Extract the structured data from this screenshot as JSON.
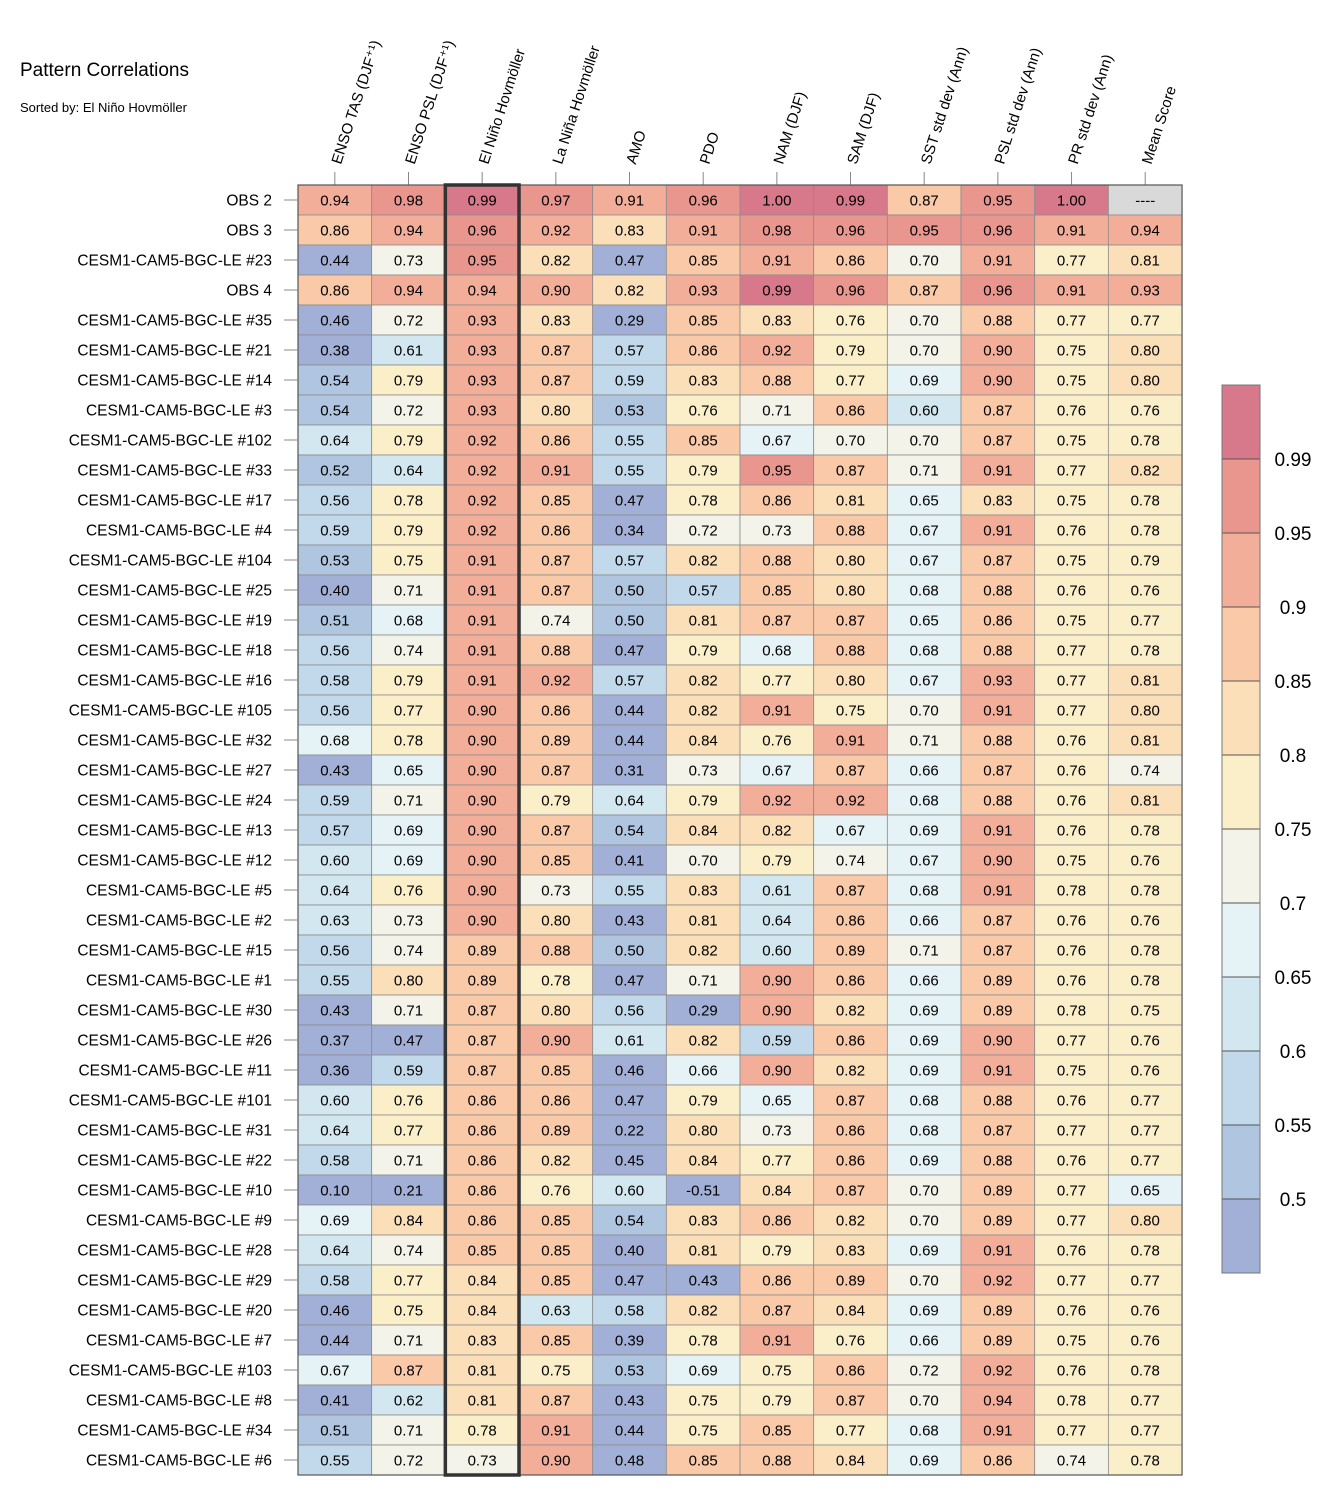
{
  "title": "Pattern Correlations",
  "subtitle": "Sorted by: El Niño Hovmöller",
  "chart_data": {
    "type": "heatmap",
    "columns": [
      "ENSO TAS (DJF⁺¹)",
      "ENSO PSL (DJF⁺¹)",
      "El Niño Hovmöller",
      "La Niña Hovmöller",
      "AMO",
      "PDO",
      "NAM (DJF)",
      "SAM (DJF)",
      "SST std dev (Ann)",
      "PSL std dev (Ann)",
      "PR std dev (Ann)",
      "Mean Score"
    ],
    "highlighted_column": "El Niño Hovmöller",
    "missing_label": "----",
    "rows": [
      {
        "name": "OBS 2",
        "values": [
          0.94,
          0.98,
          0.99,
          0.97,
          0.91,
          0.96,
          1.0,
          0.99,
          0.87,
          0.95,
          1.0,
          null
        ]
      },
      {
        "name": "OBS 3",
        "values": [
          0.86,
          0.94,
          0.96,
          0.92,
          0.83,
          0.91,
          0.98,
          0.96,
          0.95,
          0.96,
          0.91,
          0.94
        ]
      },
      {
        "name": "CESM1-CAM5-BGC-LE #23",
        "values": [
          0.44,
          0.73,
          0.95,
          0.82,
          0.47,
          0.85,
          0.91,
          0.86,
          0.7,
          0.91,
          0.77,
          0.81
        ]
      },
      {
        "name": "OBS 4",
        "values": [
          0.86,
          0.94,
          0.94,
          0.9,
          0.82,
          0.93,
          0.99,
          0.96,
          0.87,
          0.96,
          0.91,
          0.93
        ]
      },
      {
        "name": "CESM1-CAM5-BGC-LE #35",
        "values": [
          0.46,
          0.72,
          0.93,
          0.83,
          0.29,
          0.85,
          0.83,
          0.76,
          0.7,
          0.88,
          0.77,
          0.77
        ]
      },
      {
        "name": "CESM1-CAM5-BGC-LE #21",
        "values": [
          0.38,
          0.61,
          0.93,
          0.87,
          0.57,
          0.86,
          0.92,
          0.79,
          0.7,
          0.9,
          0.75,
          0.8
        ]
      },
      {
        "name": "CESM1-CAM5-BGC-LE #14",
        "values": [
          0.54,
          0.79,
          0.93,
          0.87,
          0.59,
          0.83,
          0.88,
          0.77,
          0.69,
          0.9,
          0.75,
          0.8
        ]
      },
      {
        "name": "CESM1-CAM5-BGC-LE #3",
        "values": [
          0.54,
          0.72,
          0.93,
          0.8,
          0.53,
          0.76,
          0.71,
          0.86,
          0.6,
          0.87,
          0.76,
          0.76
        ]
      },
      {
        "name": "CESM1-CAM5-BGC-LE #102",
        "values": [
          0.64,
          0.79,
          0.92,
          0.86,
          0.55,
          0.85,
          0.67,
          0.7,
          0.7,
          0.87,
          0.75,
          0.78
        ]
      },
      {
        "name": "CESM1-CAM5-BGC-LE #33",
        "values": [
          0.52,
          0.64,
          0.92,
          0.91,
          0.55,
          0.79,
          0.95,
          0.87,
          0.71,
          0.91,
          0.77,
          0.82
        ]
      },
      {
        "name": "CESM1-CAM5-BGC-LE #17",
        "values": [
          0.56,
          0.78,
          0.92,
          0.85,
          0.47,
          0.78,
          0.86,
          0.81,
          0.65,
          0.83,
          0.75,
          0.78
        ]
      },
      {
        "name": "CESM1-CAM5-BGC-LE #4",
        "values": [
          0.59,
          0.79,
          0.92,
          0.86,
          0.34,
          0.72,
          0.73,
          0.88,
          0.67,
          0.91,
          0.76,
          0.78
        ]
      },
      {
        "name": "CESM1-CAM5-BGC-LE #104",
        "values": [
          0.53,
          0.75,
          0.91,
          0.87,
          0.57,
          0.82,
          0.88,
          0.8,
          0.67,
          0.87,
          0.75,
          0.79
        ]
      },
      {
        "name": "CESM1-CAM5-BGC-LE #25",
        "values": [
          0.4,
          0.71,
          0.91,
          0.87,
          0.5,
          0.57,
          0.85,
          0.8,
          0.68,
          0.88,
          0.76,
          0.76
        ]
      },
      {
        "name": "CESM1-CAM5-BGC-LE #19",
        "values": [
          0.51,
          0.68,
          0.91,
          0.74,
          0.5,
          0.81,
          0.87,
          0.87,
          0.65,
          0.86,
          0.75,
          0.77
        ]
      },
      {
        "name": "CESM1-CAM5-BGC-LE #18",
        "values": [
          0.56,
          0.74,
          0.91,
          0.88,
          0.47,
          0.79,
          0.68,
          0.88,
          0.68,
          0.88,
          0.77,
          0.78
        ]
      },
      {
        "name": "CESM1-CAM5-BGC-LE #16",
        "values": [
          0.58,
          0.79,
          0.91,
          0.92,
          0.57,
          0.82,
          0.77,
          0.8,
          0.67,
          0.93,
          0.77,
          0.81
        ]
      },
      {
        "name": "CESM1-CAM5-BGC-LE #105",
        "values": [
          0.56,
          0.77,
          0.9,
          0.86,
          0.44,
          0.82,
          0.91,
          0.75,
          0.7,
          0.91,
          0.77,
          0.8
        ]
      },
      {
        "name": "CESM1-CAM5-BGC-LE #32",
        "values": [
          0.68,
          0.78,
          0.9,
          0.89,
          0.44,
          0.84,
          0.76,
          0.91,
          0.71,
          0.88,
          0.76,
          0.81
        ]
      },
      {
        "name": "CESM1-CAM5-BGC-LE #27",
        "values": [
          0.43,
          0.65,
          0.9,
          0.87,
          0.31,
          0.73,
          0.67,
          0.87,
          0.66,
          0.87,
          0.76,
          0.74
        ]
      },
      {
        "name": "CESM1-CAM5-BGC-LE #24",
        "values": [
          0.59,
          0.71,
          0.9,
          0.79,
          0.64,
          0.79,
          0.92,
          0.92,
          0.68,
          0.88,
          0.76,
          0.81
        ]
      },
      {
        "name": "CESM1-CAM5-BGC-LE #13",
        "values": [
          0.57,
          0.69,
          0.9,
          0.87,
          0.54,
          0.84,
          0.82,
          0.67,
          0.69,
          0.91,
          0.76,
          0.78
        ]
      },
      {
        "name": "CESM1-CAM5-BGC-LE #12",
        "values": [
          0.6,
          0.69,
          0.9,
          0.85,
          0.41,
          0.7,
          0.79,
          0.74,
          0.67,
          0.9,
          0.75,
          0.76
        ]
      },
      {
        "name": "CESM1-CAM5-BGC-LE #5",
        "values": [
          0.64,
          0.76,
          0.9,
          0.73,
          0.55,
          0.83,
          0.61,
          0.87,
          0.68,
          0.91,
          0.78,
          0.78
        ]
      },
      {
        "name": "CESM1-CAM5-BGC-LE #2",
        "values": [
          0.63,
          0.73,
          0.9,
          0.8,
          0.43,
          0.81,
          0.64,
          0.86,
          0.66,
          0.87,
          0.76,
          0.76
        ]
      },
      {
        "name": "CESM1-CAM5-BGC-LE #15",
        "values": [
          0.56,
          0.74,
          0.89,
          0.88,
          0.5,
          0.82,
          0.6,
          0.89,
          0.71,
          0.87,
          0.76,
          0.78
        ]
      },
      {
        "name": "CESM1-CAM5-BGC-LE #1",
        "values": [
          0.55,
          0.8,
          0.89,
          0.78,
          0.47,
          0.71,
          0.9,
          0.86,
          0.66,
          0.89,
          0.76,
          0.78
        ]
      },
      {
        "name": "CESM1-CAM5-BGC-LE #30",
        "values": [
          0.43,
          0.71,
          0.87,
          0.8,
          0.56,
          0.29,
          0.9,
          0.82,
          0.69,
          0.89,
          0.78,
          0.75
        ]
      },
      {
        "name": "CESM1-CAM5-BGC-LE #26",
        "values": [
          0.37,
          0.47,
          0.87,
          0.9,
          0.61,
          0.82,
          0.59,
          0.86,
          0.69,
          0.9,
          0.77,
          0.76
        ]
      },
      {
        "name": "CESM1-CAM5-BGC-LE #11",
        "values": [
          0.36,
          0.59,
          0.87,
          0.85,
          0.46,
          0.66,
          0.9,
          0.82,
          0.69,
          0.91,
          0.75,
          0.76
        ]
      },
      {
        "name": "CESM1-CAM5-BGC-LE #101",
        "values": [
          0.6,
          0.76,
          0.86,
          0.86,
          0.47,
          0.79,
          0.65,
          0.87,
          0.68,
          0.88,
          0.76,
          0.77
        ]
      },
      {
        "name": "CESM1-CAM5-BGC-LE #31",
        "values": [
          0.64,
          0.77,
          0.86,
          0.89,
          0.22,
          0.8,
          0.73,
          0.86,
          0.68,
          0.87,
          0.77,
          0.77
        ]
      },
      {
        "name": "CESM1-CAM5-BGC-LE #22",
        "values": [
          0.58,
          0.71,
          0.86,
          0.82,
          0.45,
          0.84,
          0.77,
          0.86,
          0.69,
          0.88,
          0.76,
          0.77
        ]
      },
      {
        "name": "CESM1-CAM5-BGC-LE #10",
        "values": [
          0.1,
          0.21,
          0.86,
          0.76,
          0.6,
          -0.51,
          0.84,
          0.87,
          0.7,
          0.89,
          0.77,
          0.65
        ]
      },
      {
        "name": "CESM1-CAM5-BGC-LE #9",
        "values": [
          0.69,
          0.84,
          0.86,
          0.85,
          0.54,
          0.83,
          0.86,
          0.82,
          0.7,
          0.89,
          0.77,
          0.8
        ]
      },
      {
        "name": "CESM1-CAM5-BGC-LE #28",
        "values": [
          0.64,
          0.74,
          0.85,
          0.85,
          0.4,
          0.81,
          0.79,
          0.83,
          0.69,
          0.91,
          0.76,
          0.78
        ]
      },
      {
        "name": "CESM1-CAM5-BGC-LE #29",
        "values": [
          0.58,
          0.77,
          0.84,
          0.85,
          0.47,
          0.43,
          0.86,
          0.89,
          0.7,
          0.92,
          0.77,
          0.77
        ]
      },
      {
        "name": "CESM1-CAM5-BGC-LE #20",
        "values": [
          0.46,
          0.75,
          0.84,
          0.63,
          0.58,
          0.82,
          0.87,
          0.84,
          0.69,
          0.89,
          0.76,
          0.76
        ]
      },
      {
        "name": "CESM1-CAM5-BGC-LE #7",
        "values": [
          0.44,
          0.71,
          0.83,
          0.85,
          0.39,
          0.78,
          0.91,
          0.76,
          0.66,
          0.89,
          0.75,
          0.76
        ]
      },
      {
        "name": "CESM1-CAM5-BGC-LE #103",
        "values": [
          0.67,
          0.87,
          0.81,
          0.75,
          0.53,
          0.69,
          0.75,
          0.86,
          0.72,
          0.92,
          0.76,
          0.78
        ]
      },
      {
        "name": "CESM1-CAM5-BGC-LE #8",
        "values": [
          0.41,
          0.62,
          0.81,
          0.87,
          0.43,
          0.75,
          0.79,
          0.87,
          0.7,
          0.94,
          0.78,
          0.77
        ]
      },
      {
        "name": "CESM1-CAM5-BGC-LE #34",
        "values": [
          0.51,
          0.71,
          0.78,
          0.91,
          0.44,
          0.75,
          0.85,
          0.77,
          0.68,
          0.91,
          0.77,
          0.77
        ]
      },
      {
        "name": "CESM1-CAM5-BGC-LE #6",
        "values": [
          0.55,
          0.72,
          0.73,
          0.9,
          0.48,
          0.85,
          0.88,
          0.84,
          0.69,
          0.86,
          0.74,
          0.78
        ]
      }
    ],
    "colorbar": {
      "levels": [
        0.5,
        0.55,
        0.6,
        0.65,
        0.7,
        0.75,
        0.8,
        0.85,
        0.9,
        0.95,
        0.99
      ],
      "tick_labels": [
        "0.5",
        "0.55",
        "0.6",
        "0.65",
        "0.7",
        "0.75",
        "0.8",
        "0.85",
        "0.9",
        "0.95",
        "0.99"
      ],
      "colors": [
        "#a2b0d7",
        "#afc5e0",
        "#c1d9ea",
        "#d3e7f0",
        "#e6f3f6",
        "#f3f3e9",
        "#fbefc9",
        "#fbdfb8",
        "#f9c9a8",
        "#f3ae9a",
        "#e9968f",
        "#d8798b"
      ],
      "missing_color": "#d9d9d9"
    }
  }
}
